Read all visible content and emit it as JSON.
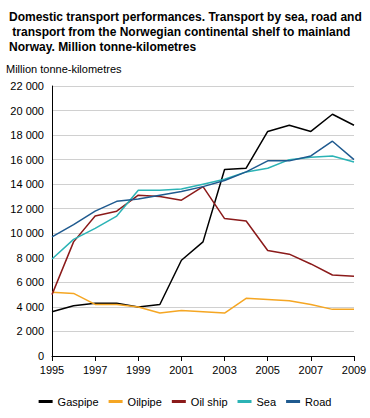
{
  "chart_data": {
    "type": "line",
    "title": "Domestic transport performances. Transport by sea, road and transport from the Norwegian continental shelf to mainland Norway. Million tonne-kilometres",
    "y_label": "Million tonne-kilometres",
    "x": [
      1995,
      1996,
      1997,
      1998,
      1999,
      2000,
      2001,
      2002,
      2003,
      2004,
      2005,
      2006,
      2007,
      2008,
      2009
    ],
    "xlim": [
      1995,
      2009
    ],
    "xticks": [
      1995,
      1997,
      1999,
      2001,
      2003,
      2005,
      2007,
      2009
    ],
    "ylim": [
      0,
      22000
    ],
    "yticks": [
      0,
      {
        "value": 2000,
        "label": "2 000"
      },
      {
        "value": 4000,
        "label": "4 000"
      },
      {
        "value": 6000,
        "label": "6 000"
      },
      {
        "value": 8000,
        "label": "8 000"
      },
      {
        "value": 10000,
        "label": "10 000"
      },
      {
        "value": 12000,
        "label": "12 000"
      },
      {
        "value": 14000,
        "label": "14 000"
      },
      {
        "value": 16000,
        "label": "16 000"
      },
      {
        "value": 18000,
        "label": "18 000"
      },
      {
        "value": 20000,
        "label": "20 000"
      },
      {
        "value": 22000,
        "label": "22 000"
      }
    ],
    "grid": true,
    "legend": "bottom",
    "series": [
      {
        "name": "Gaspipe",
        "color": "#000000",
        "values": [
          3600,
          4100,
          4300,
          4300,
          4000,
          4200,
          7800,
          9300,
          15200,
          15300,
          18300,
          18800,
          18300,
          19700,
          18800
        ]
      },
      {
        "name": "Oilpipe",
        "color": "#f5a623",
        "values": [
          5200,
          5100,
          4200,
          4200,
          4000,
          3500,
          3700,
          3600,
          3500,
          4700,
          4600,
          4500,
          4200,
          3800,
          3800
        ]
      },
      {
        "name": "Oil ship",
        "color": "#8b1a1a",
        "values": [
          5000,
          9300,
          11400,
          11800,
          13100,
          13000,
          12700,
          13800,
          11200,
          11000,
          8600,
          8300,
          7500,
          6600,
          6500
        ]
      },
      {
        "name": "Sea",
        "color": "#2bb3b5",
        "values": [
          7900,
          9500,
          10400,
          11400,
          13500,
          13500,
          13600,
          14000,
          14400,
          15000,
          15300,
          16000,
          16200,
          16300,
          15800
        ]
      },
      {
        "name": "Road",
        "color": "#1f5a8f",
        "values": [
          9700,
          10700,
          11800,
          12600,
          12800,
          13100,
          13400,
          13800,
          14300,
          15000,
          15900,
          15900,
          16300,
          17500,
          16000
        ]
      }
    ]
  }
}
